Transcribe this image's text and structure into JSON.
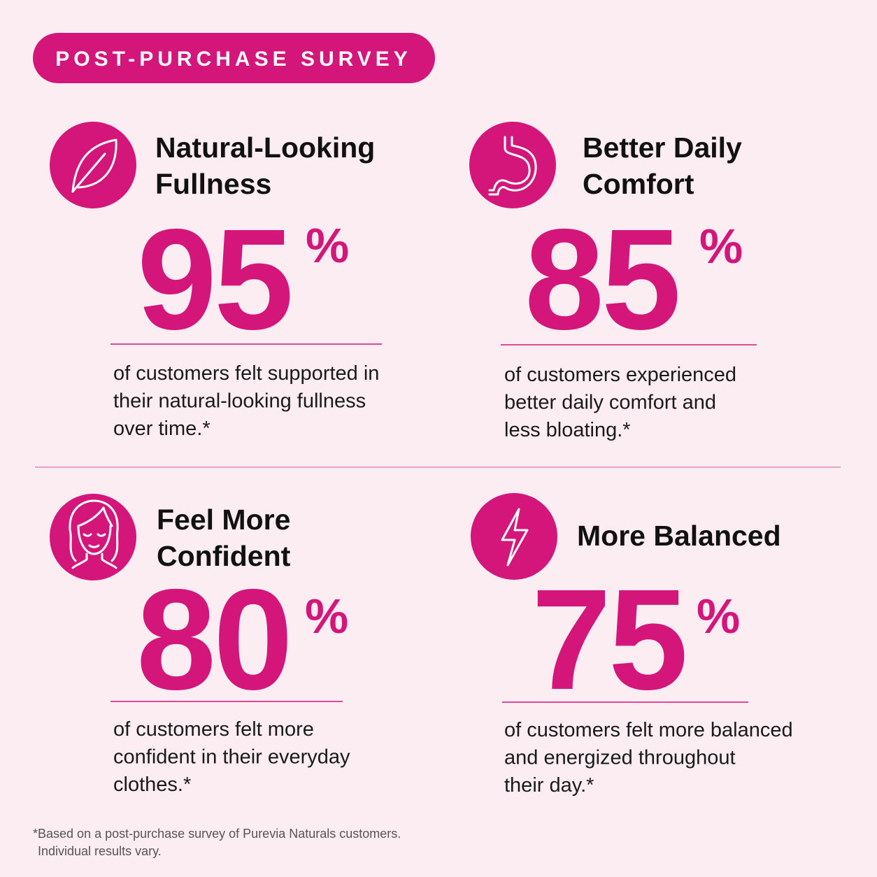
{
  "badge": "POST-PURCHASE SURVEY",
  "stats": [
    {
      "title": [
        "Natural-Looking",
        "Fullness"
      ],
      "number": "95",
      "unit": "%",
      "description": [
        "of customers felt supported in",
        "their natural-looking fullness",
        "over time.*"
      ]
    },
    {
      "title": [
        "Better Daily",
        "Comfort"
      ],
      "number": "85",
      "unit": "%",
      "description": [
        "of customers experienced",
        "better daily comfort and",
        "less bloating.*"
      ]
    },
    {
      "title": [
        "Feel More",
        "Confident"
      ],
      "number": "80",
      "unit": "%",
      "description": [
        "of customers felt more",
        "confident in their everyday",
        "clothes.*"
      ]
    },
    {
      "title": [
        "More Balanced"
      ],
      "number": "75",
      "unit": "%",
      "description": [
        "of customers felt more balanced",
        "and energized throughout",
        "their day.*"
      ]
    }
  ],
  "footnote": [
    "*Based on a post-purchase survey of Purevia Naturals customers.",
    "Individual results vary."
  ]
}
